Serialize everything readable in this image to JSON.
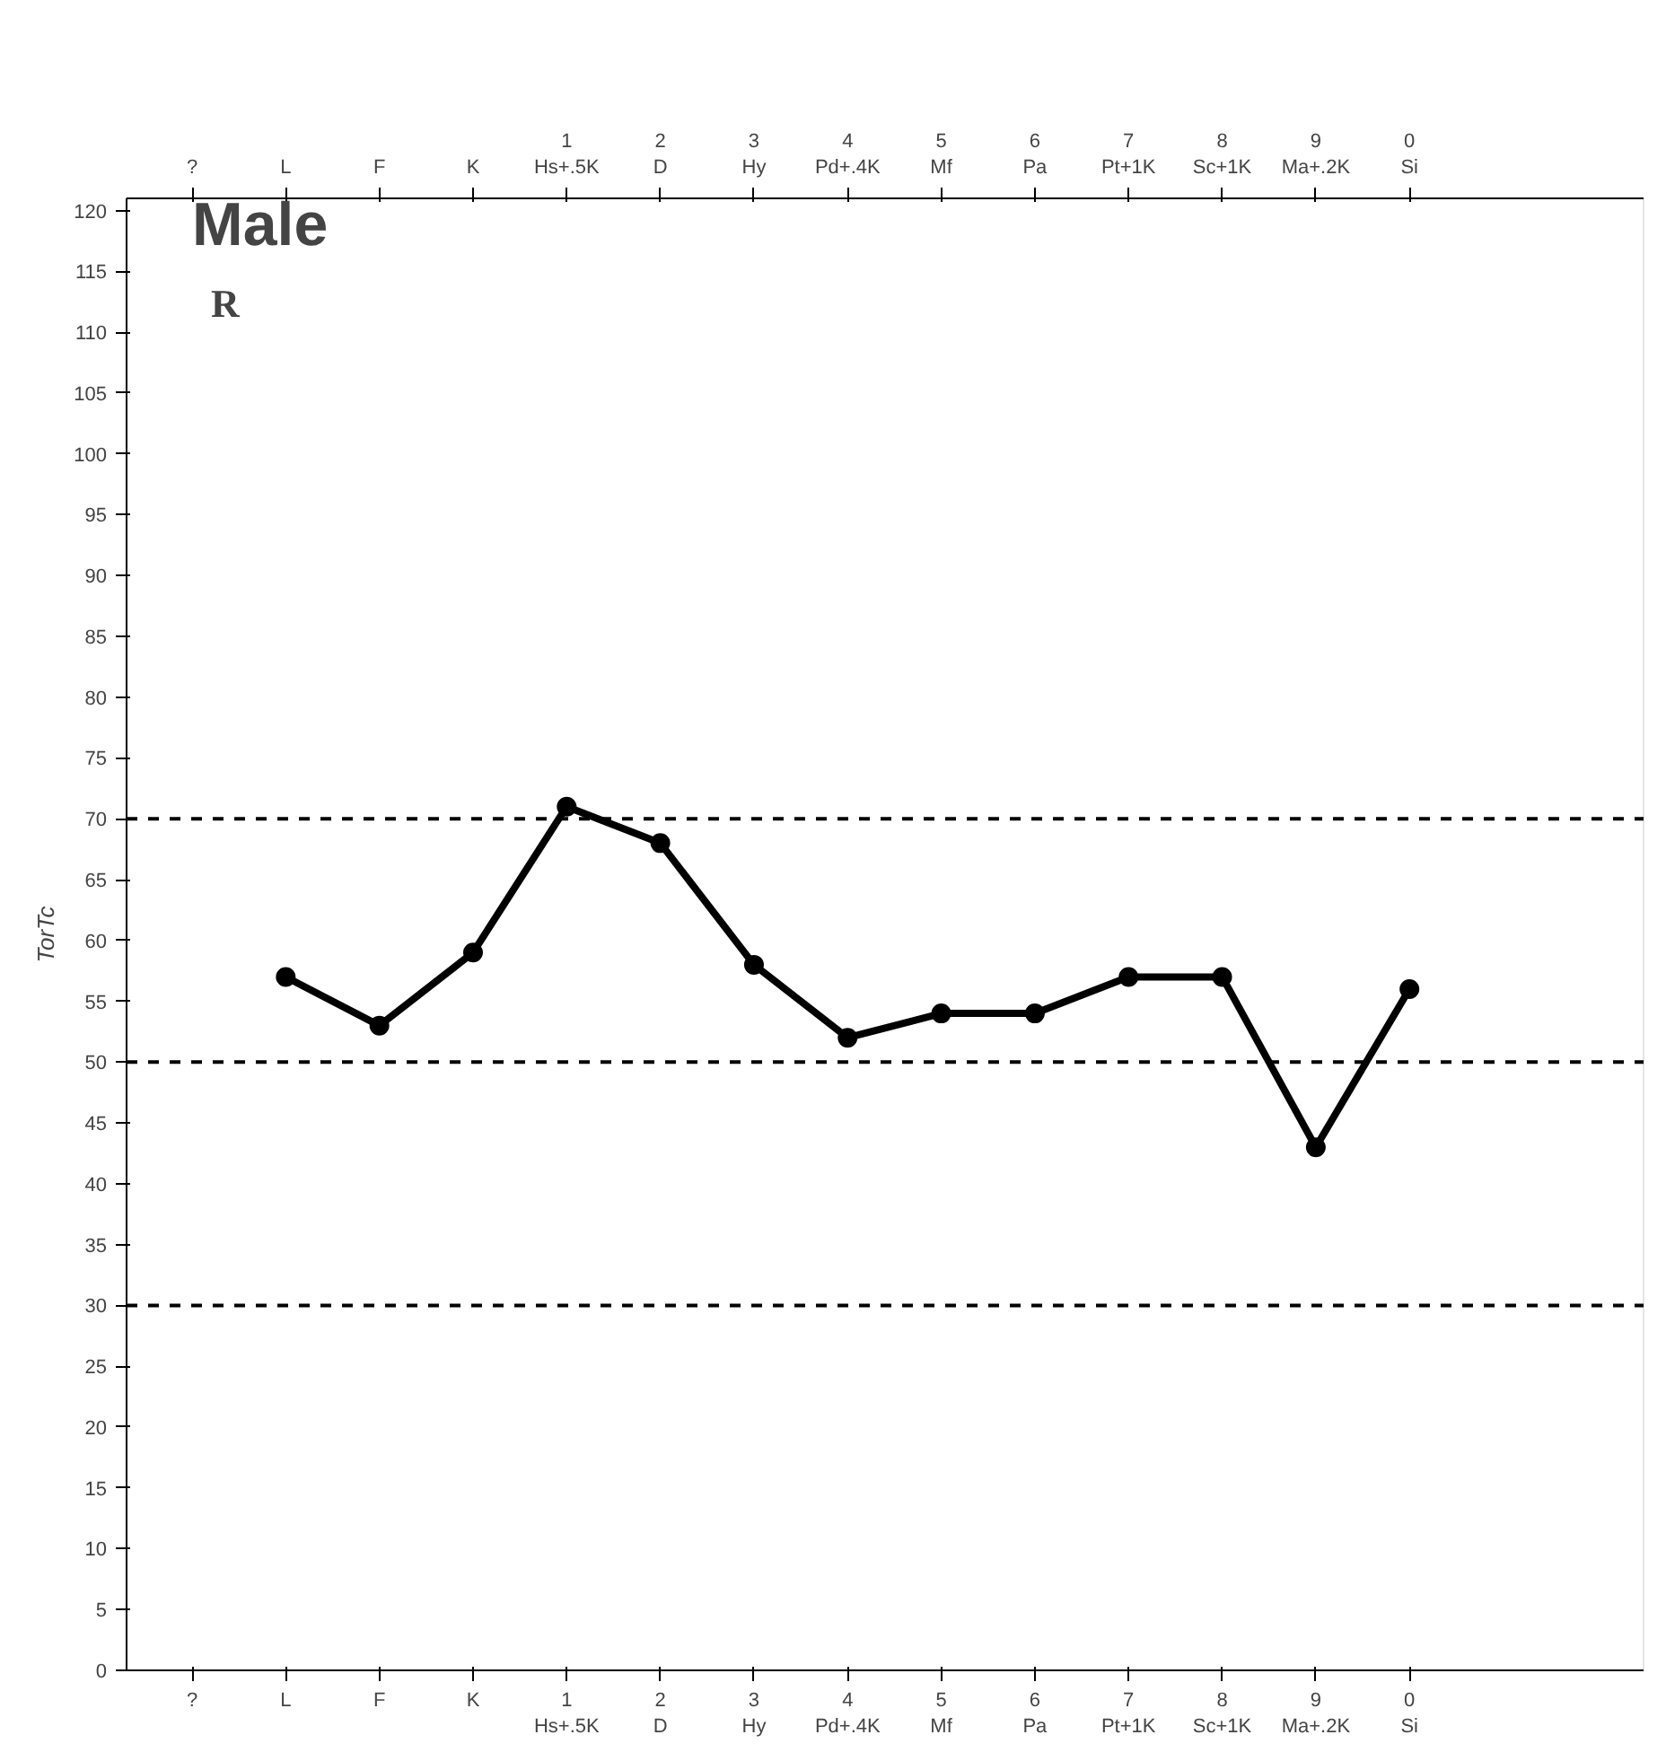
{
  "chart_data": {
    "type": "line",
    "title": "Male",
    "subtitle": "R",
    "ylabel": "TorTc",
    "categories": [
      "?",
      "L",
      "F",
      "K",
      "1\nHs+.5K",
      "2\nD",
      "3\nHy",
      "4\nPd+.4K",
      "5\nMf",
      "6\nPa",
      "7\nPt+1K",
      "8\nSc+1K",
      "9\nMa+.2K",
      "0\nSi"
    ],
    "series": [
      {
        "color": "#000000",
        "values": [
          null,
          57,
          53,
          59,
          71,
          68,
          58,
          52,
          54,
          54,
          57,
          57,
          43,
          56
        ]
      }
    ],
    "ylim": [
      0,
      121
    ],
    "yticks": [
      0,
      5,
      10,
      15,
      20,
      25,
      30,
      35,
      40,
      45,
      50,
      55,
      60,
      65,
      70,
      75,
      80,
      85,
      90,
      95,
      100,
      105,
      110,
      115,
      120
    ],
    "ref_lines": [
      {
        "axis": "y",
        "value": 70,
        "color": "#000000",
        "line_style": "dashed"
      },
      {
        "axis": "y",
        "value": 50,
        "color": "#000000",
        "line_style": "dashed"
      },
      {
        "axis": "y",
        "value": 30,
        "color": "#000000",
        "line_style": "dashed"
      }
    ],
    "grid": false,
    "marker": "circle",
    "line_style": "solid"
  }
}
